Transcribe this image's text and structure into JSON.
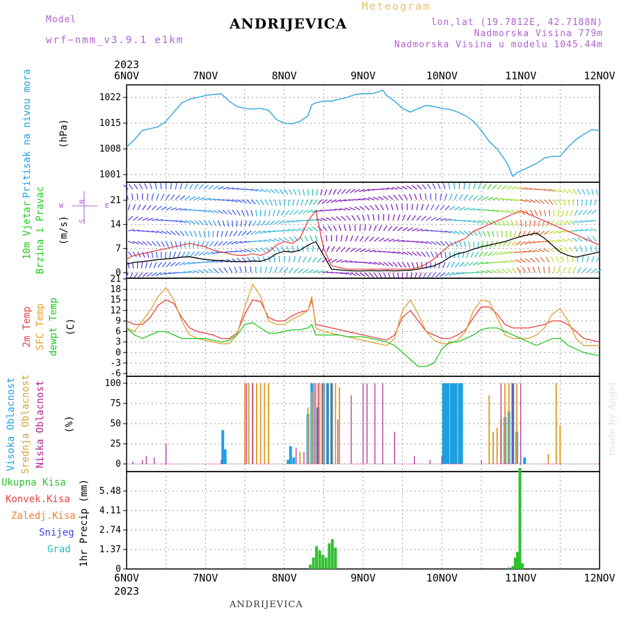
{
  "header": {
    "title": "ANDRIJEVICA",
    "meteogram_label": "Meteogram",
    "model_label": "Model",
    "model_name": "wrf−nmm_v3.9.1  e1km",
    "lonlat": "lon,lat (19.7812E, 42.7188N)",
    "elevation": "Nadmorska Visina 779m",
    "elevation_model": "Nadmorska Visina u modelu 1045.44m"
  },
  "footer": {
    "station": "ANDRIJEVICA"
  },
  "signature": "made by Angel",
  "colors": {
    "pressure": "#1ea0e0",
    "temp2m": "#e84040",
    "sfc_temp": "#e0a030",
    "dewpoint": "#20c820",
    "high_cloud": "#1ea0e0",
    "mid_cloud": "#e0a030",
    "low_cloud": "#b02090",
    "wind_speed": "#000000",
    "wind_gust": "#e84040",
    "total_precip": "#30c030",
    "convective": "#e84040",
    "freezing": "#f08030",
    "snow": "#4040e0",
    "hail": "#20c0c0"
  },
  "chart_data": [
    {
      "type": "line",
      "name": "pressure",
      "ylabel_main": "Pritisak na nivou mora",
      "ylabel_unit": "(hPa)",
      "ylim": [
        996,
        1025
      ],
      "yticks": [
        1001,
        1008,
        1015,
        1022
      ],
      "grid": true,
      "x": [
        6.0,
        6.1,
        6.2,
        6.3,
        6.4,
        6.5,
        6.6,
        6.7,
        6.8,
        6.9,
        7.0,
        7.1,
        7.2,
        7.25,
        7.3,
        7.4,
        7.5,
        7.6,
        7.7,
        7.8,
        7.9,
        8.0,
        8.1,
        8.2,
        8.3,
        8.35,
        8.4,
        8.5,
        8.6,
        8.7,
        8.8,
        8.9,
        9.0,
        9.1,
        9.2,
        9.25,
        9.3,
        9.4,
        9.5,
        9.6,
        9.7,
        9.8,
        9.9,
        10.0,
        10.1,
        10.2,
        10.3,
        10.4,
        10.5,
        10.6,
        10.7,
        10.8,
        10.85,
        10.9,
        10.95,
        11.0,
        11.1,
        11.2,
        11.3,
        11.4,
        11.5,
        11.6,
        11.7,
        11.8,
        11.9,
        12.0
      ],
      "series": [
        {
          "name": "pressure",
          "values": [
            1008.5,
            1010.5,
            1013,
            1013.5,
            1014,
            1015.5,
            1018,
            1020.5,
            1021.5,
            1022,
            1022.5,
            1022.8,
            1023,
            1022,
            1021,
            1019.5,
            1019,
            1018.8,
            1019,
            1018.5,
            1016,
            1015,
            1014.8,
            1015.5,
            1017,
            1020,
            1020.5,
            1021,
            1021,
            1021.5,
            1022,
            1022.8,
            1023,
            1023,
            1023.5,
            1024,
            1022.5,
            1021,
            1019,
            1018,
            1019,
            1019.8,
            1019.5,
            1019,
            1018.7,
            1018,
            1017,
            1015.5,
            1013,
            1010,
            1008,
            1005,
            1003,
            1000.5,
            1001.5,
            1002,
            1003,
            1004,
            1005.5,
            1006,
            1006,
            1008.5,
            1010.5,
            1012,
            1013.2,
            1013
          ]
        }
      ]
    },
    {
      "type": "line",
      "name": "wind",
      "ylabel_main": "10m Vjetar",
      "ylabel_sub": "Brzina i Pravac",
      "ylabel_unit": "(m/s)",
      "compass": {
        "n": "N",
        "s": "S",
        "e": "E",
        "w": "W"
      },
      "ylim": [
        0,
        26
      ],
      "yticks": [
        0,
        7,
        14,
        21
      ],
      "grid": true,
      "x": [
        6.0,
        6.1,
        6.2,
        6.3,
        6.4,
        6.5,
        6.6,
        6.7,
        6.8,
        6.9,
        7.0,
        7.1,
        7.2,
        7.3,
        7.4,
        7.5,
        7.6,
        7.7,
        7.8,
        7.9,
        8.0,
        8.1,
        8.2,
        8.3,
        8.4,
        8.5,
        8.6,
        8.7,
        8.8,
        8.9,
        9.0,
        9.1,
        9.2,
        9.3,
        9.4,
        9.5,
        9.6,
        9.7,
        9.8,
        9.9,
        10.0,
        10.1,
        10.2,
        10.3,
        10.4,
        10.5,
        10.6,
        10.7,
        10.8,
        10.9,
        11.0,
        11.1,
        11.2,
        11.3,
        11.4,
        11.5,
        11.6,
        11.7,
        11.8,
        11.9,
        12.0
      ],
      "series": [
        {
          "name": "wind_speed",
          "values": [
            2.5,
            3,
            3.2,
            3.5,
            3.8,
            4,
            4.2,
            4.5,
            4.6,
            4.2,
            3.8,
            3.6,
            3.5,
            3.3,
            3.2,
            3.2,
            3.4,
            3.3,
            4,
            5.5,
            6.2,
            6,
            6.5,
            8,
            9,
            5,
            1,
            0.8,
            0.6,
            0.5,
            0.5,
            0.6,
            0.5,
            0.6,
            0.5,
            0.6,
            0.7,
            1,
            1.5,
            2,
            3,
            4.5,
            5.5,
            6,
            6.8,
            7.5,
            8,
            8.5,
            9,
            9.8,
            10.5,
            11,
            11.5,
            10,
            8,
            6,
            5,
            4.5,
            5,
            5.5,
            6
          ]
        },
        {
          "name": "wind_gust",
          "values": [
            4,
            5,
            5.5,
            6,
            6.5,
            7,
            7.5,
            8,
            8.5,
            8,
            7.5,
            6.5,
            6,
            5.5,
            5,
            5,
            5.5,
            5,
            6,
            8,
            9,
            8.5,
            10,
            15,
            18,
            7,
            2,
            1.5,
            1,
            1,
            1,
            1,
            1,
            1,
            1,
            1,
            1,
            1.5,
            2.5,
            4,
            6,
            8,
            9,
            10,
            12,
            13,
            14,
            15,
            16,
            17,
            18,
            17,
            16,
            15,
            14,
            13,
            12,
            11,
            10,
            9,
            8
          ]
        }
      ]
    },
    {
      "type": "line",
      "name": "temperature",
      "ylabel_lines": [
        "2m Temp",
        "SFC Temp",
        "dewpt Temp"
      ],
      "ylabel_unit": "(C)",
      "ylim": [
        -6,
        21
      ],
      "yticks": [
        -6,
        -3,
        0,
        3,
        6,
        9,
        12,
        15,
        18,
        21
      ],
      "grid": true,
      "x": [
        6.0,
        6.1,
        6.2,
        6.3,
        6.4,
        6.5,
        6.6,
        6.7,
        6.8,
        6.9,
        7.0,
        7.1,
        7.2,
        7.3,
        7.4,
        7.5,
        7.6,
        7.7,
        7.8,
        7.9,
        8.0,
        8.1,
        8.2,
        8.3,
        8.35,
        8.4,
        8.5,
        8.6,
        8.7,
        8.8,
        8.9,
        9.0,
        9.1,
        9.2,
        9.3,
        9.4,
        9.5,
        9.6,
        9.7,
        9.8,
        9.9,
        10.0,
        10.1,
        10.2,
        10.3,
        10.4,
        10.5,
        10.6,
        10.7,
        10.8,
        10.9,
        11.0,
        11.1,
        11.2,
        11.3,
        11.4,
        11.5,
        11.6,
        11.7,
        11.8,
        11.9,
        12.0
      ],
      "series": [
        {
          "name": "temp2m",
          "values": [
            9,
            8,
            8,
            10,
            13.5,
            15,
            14,
            10,
            7,
            6,
            5.5,
            5,
            4,
            4,
            5.5,
            11,
            15,
            14.5,
            10,
            9,
            9,
            10.5,
            11.5,
            12,
            15,
            8,
            7.5,
            7,
            6.5,
            6,
            5.5,
            5,
            4.5,
            4,
            3.5,
            5,
            10,
            12,
            9,
            6,
            5,
            4,
            4,
            5,
            6.5,
            10,
            13,
            13,
            11,
            8,
            7,
            7,
            7,
            7.5,
            8,
            9,
            9,
            8,
            6,
            4,
            3.5,
            3
          ]
        },
        {
          "name": "sfc_temp",
          "values": [
            7,
            6,
            9,
            12,
            16,
            18.5,
            15,
            9,
            5,
            4,
            3.5,
            3,
            2.5,
            2.5,
            5,
            13,
            19.5,
            16,
            9,
            8,
            8,
            9.5,
            10.5,
            12,
            16,
            7,
            6,
            5.5,
            5,
            4.5,
            4,
            3.5,
            3,
            2.5,
            2,
            4,
            12,
            15,
            11,
            6,
            3.5,
            2.5,
            2.5,
            3.5,
            6,
            12,
            15,
            14.5,
            10,
            5,
            4,
            4,
            4,
            5,
            7,
            11,
            12.5,
            9,
            4,
            2,
            2,
            2
          ]
        },
        {
          "name": "dewpoint",
          "values": [
            7,
            5,
            4,
            5,
            6,
            6,
            5,
            4,
            4,
            4,
            4,
            3.5,
            3,
            3.5,
            5,
            8,
            8.5,
            7,
            5.5,
            5.5,
            6,
            6.5,
            6.5,
            7,
            8,
            5,
            5,
            5,
            5,
            4.5,
            4.5,
            4.5,
            4,
            3.5,
            3,
            2,
            0,
            -2,
            -4,
            -4,
            -3,
            1,
            3,
            3,
            4,
            5,
            6.5,
            7,
            7,
            6,
            5,
            4,
            3,
            2,
            3,
            4,
            4,
            2,
            1,
            0,
            -0.5,
            -1
          ]
        }
      ]
    },
    {
      "type": "bar",
      "name": "cloud",
      "ylabel_lines": [
        "Visoka Oblacnost",
        "Srednja Oblacnost",
        "Niska Oblacnost"
      ],
      "ylabel_unit": "(%)",
      "ylim": [
        0,
        100
      ],
      "yticks": [
        0,
        25,
        50,
        75,
        100
      ],
      "grid": true,
      "series": [
        {
          "name": "high_cloud",
          "x": [
            7.22,
            7.25,
            8.05,
            8.08,
            8.12,
            8.3,
            8.35,
            8.42,
            8.5,
            8.55,
            8.6,
            10.02,
            10.05,
            10.08,
            10.12,
            10.15,
            10.18,
            10.22,
            10.25,
            10.8,
            10.85,
            10.9,
            10.95,
            11.05
          ],
          "values": [
            42,
            18,
            5,
            22,
            8,
            62,
            100,
            70,
            100,
            100,
            100,
            100,
            100,
            100,
            100,
            100,
            100,
            100,
            100,
            58,
            65,
            100,
            40,
            8
          ]
        },
        {
          "name": "mid_cloud",
          "x": [
            7.5,
            7.55,
            7.6,
            7.65,
            7.7,
            7.75,
            7.8,
            8.2,
            8.3,
            8.35,
            8.4,
            8.45,
            8.5,
            8.55,
            8.6,
            8.65,
            8.7,
            10.6,
            10.65,
            10.7,
            10.75,
            10.8,
            10.85,
            10.95,
            11.35,
            11.45,
            11.5
          ],
          "values": [
            100,
            100,
            100,
            100,
            100,
            100,
            100,
            15,
            70,
            90,
            100,
            100,
            100,
            100,
            100,
            100,
            95,
            85,
            40,
            45,
            55,
            100,
            100,
            100,
            12,
            100,
            48
          ]
        },
        {
          "name": "low_cloud",
          "x": [
            6.08,
            6.2,
            6.25,
            6.35,
            6.5,
            7.2,
            7.52,
            7.6,
            8.15,
            8.25,
            8.38,
            8.43,
            8.48,
            8.55,
            8.6,
            8.68,
            8.85,
            9.0,
            9.05,
            9.15,
            9.25,
            9.4,
            9.65,
            9.85,
            10.0,
            10.5,
            10.75,
            10.9,
            11.0
          ],
          "values": [
            3,
            5,
            10,
            8,
            25,
            5,
            100,
            100,
            20,
            15,
            100,
            100,
            100,
            100,
            100,
            55,
            85,
            100,
            100,
            100,
            100,
            40,
            10,
            5,
            10,
            5,
            100,
            100,
            100
          ]
        }
      ]
    },
    {
      "type": "bar",
      "name": "precip",
      "legend": [
        "Ukupna Kisa",
        "Konvek.Kisa",
        "Zaledj.Kisa",
        "Snijeg",
        "Grad"
      ],
      "ylabel_unit": "1hr Precip (mm)",
      "ylim": [
        0,
        6.85
      ],
      "yticks": [
        0,
        1.37,
        2.74,
        4.11,
        5.48
      ],
      "grid": true,
      "series": [
        {
          "name": "total_precip",
          "x": [
            8.33,
            8.37,
            8.41,
            8.45,
            8.49,
            8.53,
            8.57,
            8.61,
            8.65,
            10.85,
            10.9,
            10.93,
            10.96,
            10.99,
            11.02
          ],
          "values": [
            0.3,
            0.8,
            1.6,
            1.3,
            1.0,
            0.8,
            1.8,
            2.1,
            1.5,
            0.1,
            0.2,
            0.8,
            1.2,
            7.1,
            0.4
          ]
        }
      ]
    },
    {
      "type": "axis",
      "name": "time_axis",
      "year_label": "2023",
      "tick_labels": [
        "6NOV",
        "7NOV",
        "8NOV",
        "9NOV",
        "10NOV",
        "11NOV",
        "12NOV"
      ],
      "xlim": [
        6,
        12
      ]
    }
  ]
}
